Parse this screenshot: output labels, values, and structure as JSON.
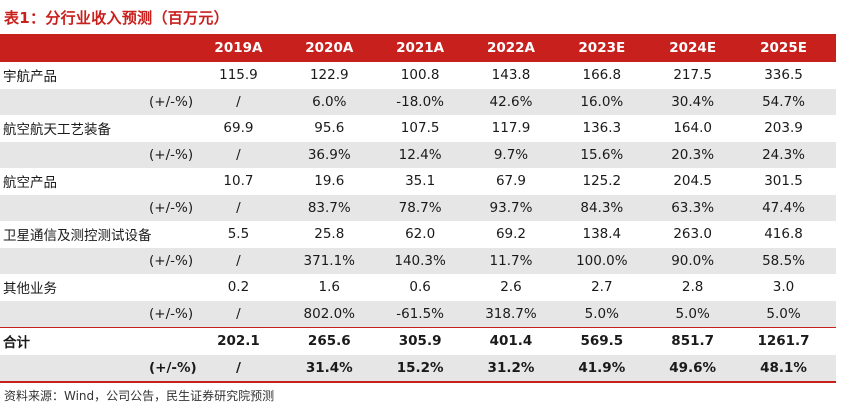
{
  "title": "表1：分行业收入预测（百万元）",
  "columns": [
    "2019A",
    "2020A",
    "2021A",
    "2022A",
    "2023E",
    "2024E",
    "2025E"
  ],
  "rows": [
    {
      "label": "宇航产品",
      "values": [
        "115.9",
        "122.9",
        "100.8",
        "143.8",
        "166.8",
        "217.5",
        "336.5"
      ]
    },
    {
      "label": "(+/-%)",
      "values": [
        "/",
        "6.0%",
        "-18.0%",
        "42.6%",
        "16.0%",
        "30.4%",
        "54.7%"
      ]
    },
    {
      "label": "航空航天工艺装备",
      "values": [
        "69.9",
        "95.6",
        "107.5",
        "117.9",
        "136.3",
        "164.0",
        "203.9"
      ]
    },
    {
      "label": "(+/-%)",
      "values": [
        "/",
        "36.9%",
        "12.4%",
        "9.7%",
        "15.6%",
        "20.3%",
        "24.3%"
      ]
    },
    {
      "label": "航空产品",
      "values": [
        "10.7",
        "19.6",
        "35.1",
        "67.9",
        "125.2",
        "204.5",
        "301.5"
      ]
    },
    {
      "label": "(+/-%)",
      "values": [
        "/",
        "83.7%",
        "78.7%",
        "93.7%",
        "84.3%",
        "63.3%",
        "47.4%"
      ]
    },
    {
      "label": "卫星通信及测控测试设备",
      "values": [
        "5.5",
        "25.8",
        "62.0",
        "69.2",
        "138.4",
        "263.0",
        "416.8"
      ]
    },
    {
      "label": "(+/-%)",
      "values": [
        "/",
        "371.1%",
        "140.3%",
        "11.7%",
        "100.0%",
        "90.0%",
        "58.5%"
      ]
    },
    {
      "label": "其他业务",
      "values": [
        "0.2",
        "1.6",
        "0.6",
        "2.6",
        "2.7",
        "2.8",
        "3.0"
      ]
    },
    {
      "label": "(+/-%)",
      "values": [
        "/",
        "802.0%",
        "-61.5%",
        "318.7%",
        "5.0%",
        "5.0%",
        "5.0%"
      ]
    },
    {
      "label": "合计",
      "values": [
        "202.1",
        "265.6",
        "305.9",
        "401.4",
        "569.5",
        "851.7",
        "1261.7"
      ]
    },
    {
      "label": "(+/-%)",
      "values": [
        "/",
        "31.4%",
        "15.2%",
        "31.2%",
        "41.9%",
        "49.6%",
        "48.1%"
      ]
    }
  ],
  "source": "资料来源：Wind，公司公告，民生证券研究院预测",
  "colors": {
    "header_bg": "#c8201d",
    "header_text": "#ffffff",
    "pct_row_bg": "#e6e6e6",
    "title_text": "#c8201d"
  }
}
